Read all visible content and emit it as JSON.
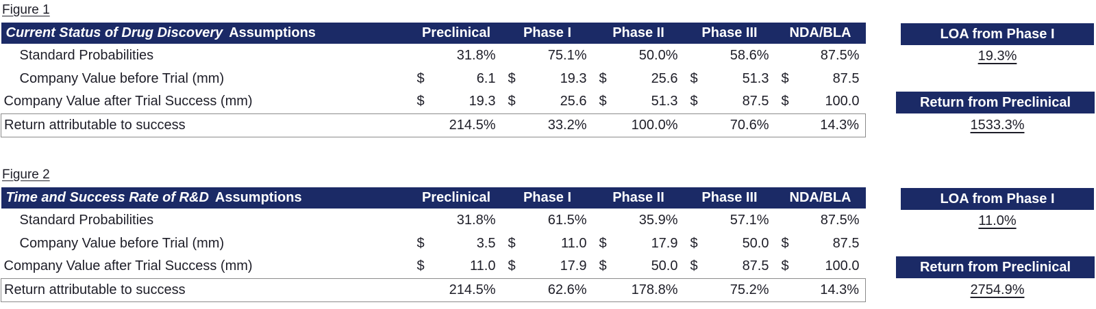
{
  "currency": "$",
  "colors": {
    "navy": "#1b2a66",
    "text": "#1d1d27",
    "box_border": "#8a8a8a",
    "header_text": "#ffffff"
  },
  "columns": [
    "Preclinical",
    "Phase I",
    "Phase II",
    "Phase III",
    "NDA/BLA"
  ],
  "figures": [
    {
      "label": "Figure 1",
      "title_italic": "Current Status of Drug Discovery",
      "title_rest": "Assumptions",
      "rows": [
        {
          "label": "Standard Probabilities",
          "values": [
            "31.8%",
            "75.1%",
            "50.0%",
            "58.6%",
            "87.5%"
          ]
        },
        {
          "label": "Company Value before Trial (mm)",
          "values": [
            "6.1",
            "19.3",
            "25.6",
            "51.3",
            "87.5"
          ]
        },
        {
          "label": "Company Value after Trial Success (mm)",
          "values": [
            "19.3",
            "25.6",
            "51.3",
            "87.5",
            "100.0"
          ]
        },
        {
          "label": "Return attributable to success",
          "values": [
            "214.5%",
            "33.2%",
            "100.0%",
            "70.6%",
            "14.3%"
          ]
        }
      ],
      "side": {
        "loa_label": "LOA from Phase I",
        "loa_value": "19.3%",
        "return_label": "Return from Preclinical",
        "return_value": "1533.3%"
      }
    },
    {
      "label": "Figure 2",
      "title_italic": "Time and Success Rate of R&D",
      "title_rest": "Assumptions",
      "rows": [
        {
          "label": "Standard Probabilities",
          "values": [
            "31.8%",
            "61.5%",
            "35.9%",
            "57.1%",
            "87.5%"
          ]
        },
        {
          "label": "Company Value before Trial (mm)",
          "values": [
            "3.5",
            "11.0",
            "17.9",
            "50.0",
            "87.5"
          ]
        },
        {
          "label": "Company Value after Trial Success (mm)",
          "values": [
            "11.0",
            "17.9",
            "50.0",
            "87.5",
            "100.0"
          ]
        },
        {
          "label": "Return attributable to success",
          "values": [
            "214.5%",
            "62.6%",
            "178.8%",
            "75.2%",
            "14.3%"
          ]
        }
      ],
      "side": {
        "loa_label": "LOA from Phase I",
        "loa_value": "11.0%",
        "return_label": "Return from Preclinical",
        "return_value": "2754.9%"
      }
    }
  ]
}
